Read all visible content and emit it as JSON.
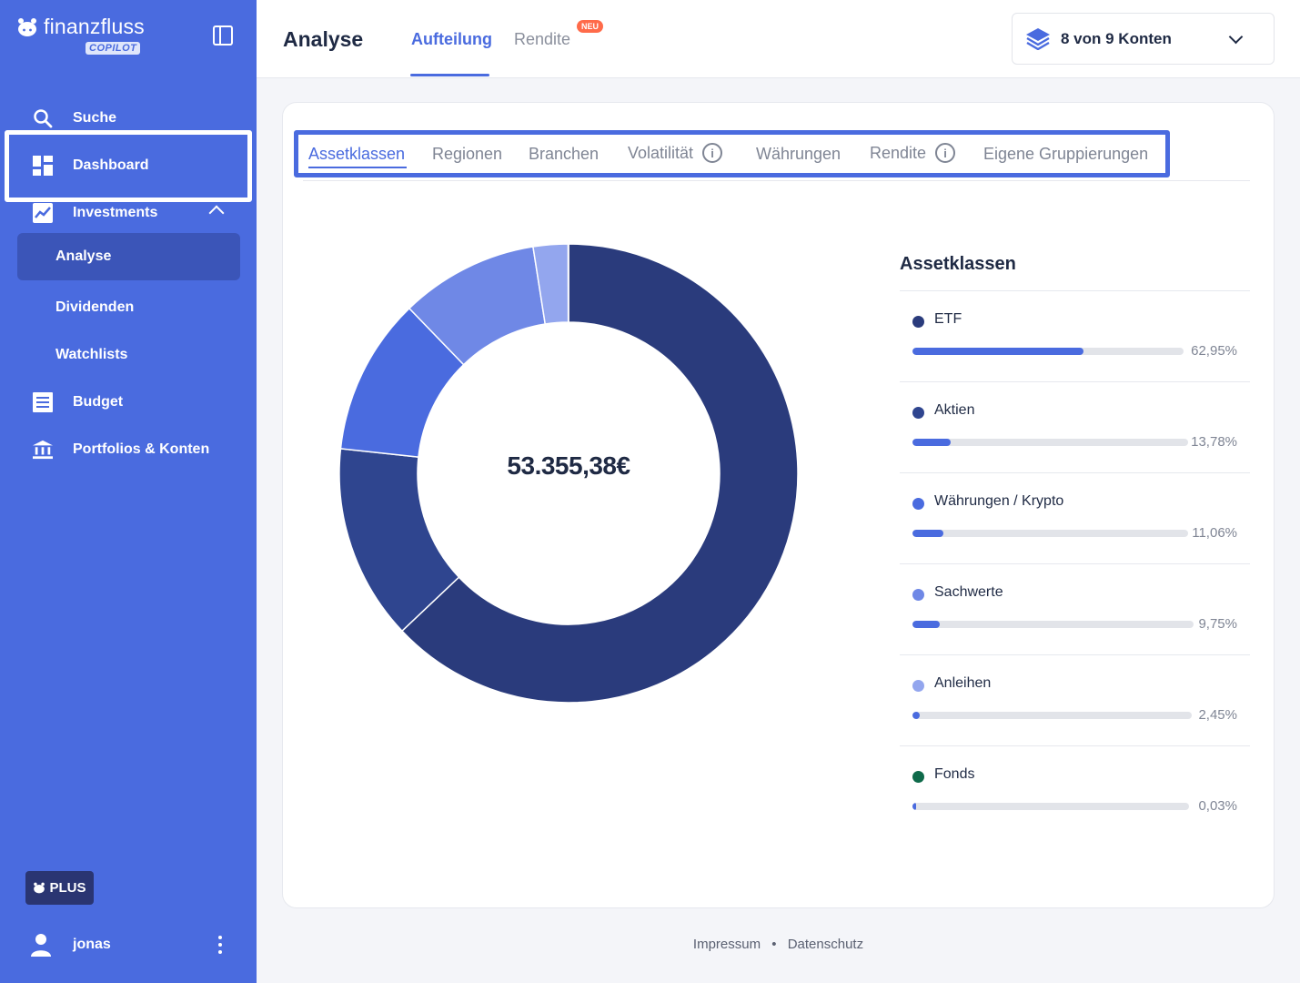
{
  "brand": {
    "name": "finanzfluss",
    "badge": "COPILOT"
  },
  "sidebar": {
    "items": [
      {
        "label": "Suche"
      },
      {
        "label": "Dashboard"
      },
      {
        "label": "Investments"
      },
      {
        "label": "Analyse"
      },
      {
        "label": "Dividenden"
      },
      {
        "label": "Watchlists"
      },
      {
        "label": "Budget"
      },
      {
        "label": "Portfolios & Konten"
      }
    ],
    "plus_label": "PLUS",
    "user_name": "jonas"
  },
  "header": {
    "title": "Analyse",
    "tabs": [
      {
        "label": "Aufteilung"
      },
      {
        "label": "Rendite"
      }
    ],
    "new_badge": "NEU",
    "accounts_label": "8 von 9 Konten"
  },
  "subtabs": [
    {
      "label": "Assetklassen"
    },
    {
      "label": "Regionen"
    },
    {
      "label": "Branchen"
    },
    {
      "label": "Volatilität"
    },
    {
      "label": "Währungen"
    },
    {
      "label": "Rendite"
    },
    {
      "label": "Eigene Gruppierungen"
    }
  ],
  "total": "53.355,38€",
  "legend": {
    "title": "Assetklassen",
    "items": [
      {
        "name": "ETF",
        "pct": "62,95%",
        "color": "#2a3b7c"
      },
      {
        "name": "Aktien",
        "pct": "13,78%",
        "color": "#2f458f"
      },
      {
        "name": "Währungen / Krypto",
        "pct": "11,06%",
        "color": "#4a6bdf"
      },
      {
        "name": "Sachwerte",
        "pct": "9,75%",
        "color": "#6f88e6"
      },
      {
        "name": "Anleihen",
        "pct": "2,45%",
        "color": "#93a6ee"
      },
      {
        "name": "Fonds",
        "pct": "0,03%",
        "color": "#0f6a4a"
      }
    ]
  },
  "chart_data": {
    "type": "pie",
    "categories": [
      "ETF",
      "Aktien",
      "Währungen / Krypto",
      "Sachwerte",
      "Anleihen",
      "Fonds"
    ],
    "values": [
      62.95,
      13.78,
      11.06,
      9.75,
      2.45,
      0.03
    ],
    "colors": [
      "#2a3b7c",
      "#2f458f",
      "#4a6bdf",
      "#6f88e6",
      "#93a6ee",
      "#0f6a4a"
    ],
    "title": "Assetklassen"
  },
  "footer": {
    "impressum": "Impressum",
    "separator": "•",
    "datenschutz": "Datenschutz"
  }
}
